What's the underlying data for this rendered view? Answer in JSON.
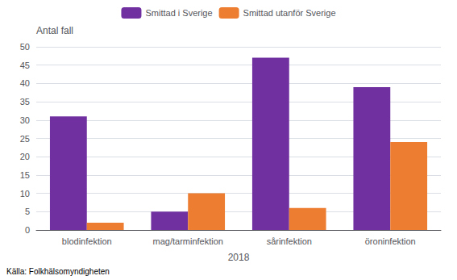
{
  "chart_data": {
    "type": "bar",
    "categories": [
      "blodinfektion",
      "mag/tarminfektion",
      "sårinfektion",
      "öroninfektion"
    ],
    "series": [
      {
        "name": "Smittad i Sverige",
        "color": "#7030A0",
        "values": [
          31,
          5,
          47,
          39
        ]
      },
      {
        "name": "Smittad utanför Sverige",
        "color": "#ED7D31",
        "values": [
          2,
          10,
          6,
          24
        ]
      }
    ],
    "xlabel": "2018",
    "ylabel": "Antal fall",
    "annotations": [
      "Källa: Folkhälsomyndigheten"
    ],
    "ylim": [
      0,
      50
    ],
    "yticks": [
      0,
      5,
      10,
      15,
      20,
      25,
      30,
      35,
      40,
      45,
      50
    ],
    "grid": true,
    "legend": "top"
  }
}
